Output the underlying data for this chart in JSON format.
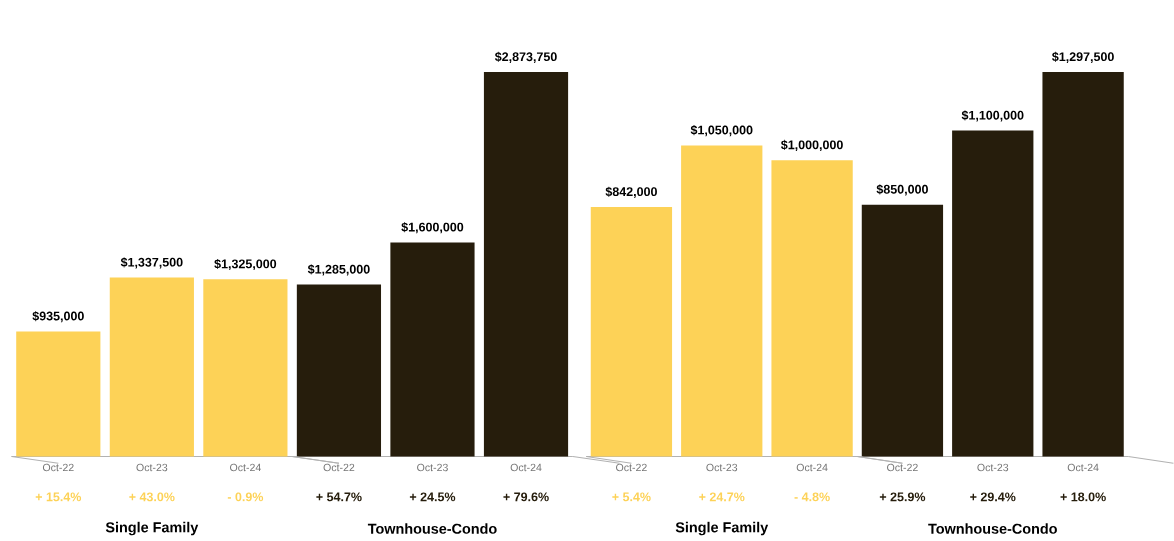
{
  "chart_data": [
    {
      "type": "bar",
      "categories": [
        "Oct-22",
        "Oct-23",
        "Oct-24",
        "Oct-22",
        "Oct-23",
        "Oct-24"
      ],
      "values": [
        935000,
        1337500,
        1325000,
        1285000,
        1600000,
        2873750
      ],
      "colors": [
        "#fdd257",
        "#fdd257",
        "#fdd257",
        "#261d0c",
        "#261d0c",
        "#261d0c"
      ],
      "value_labels": [
        "$935,000",
        "$1,337,500",
        "$1,325,000",
        "$1,285,000",
        "$1,600,000",
        "$2,873,750"
      ],
      "annotations": [
        "+ 15.4%",
        "+ 43.0%",
        "- 0.9%",
        "+ 54.7%",
        "+ 24.5%",
        "+ 79.6%",
        "Single Family",
        "Townhouse-Condo"
      ]
    },
    {
      "type": "bar",
      "categories": [
        "Oct-22",
        "Oct-23",
        "Oct-24",
        "Oct-22",
        "Oct-23",
        "Oct-24"
      ],
      "values": [
        842000,
        1050000,
        1000000,
        850000,
        1100000,
        1297500
      ],
      "colors": [
        "#fdd257",
        "#fdd257",
        "#fdd257",
        "#261d0c",
        "#261d0c",
        "#261d0c"
      ],
      "value_labels": [
        "$842,000",
        "$1,050,000",
        "$1,000,000",
        "$850,000",
        "$1,100,000",
        "$1,297,500"
      ],
      "annotations": [
        "+ 5.4%",
        "+ 24.7%",
        "- 4.8%",
        "+ 25.9%",
        "+ 29.4%",
        "+ 18.0%",
        "Single Family",
        "Townhouse-Condo"
      ]
    }
  ]
}
